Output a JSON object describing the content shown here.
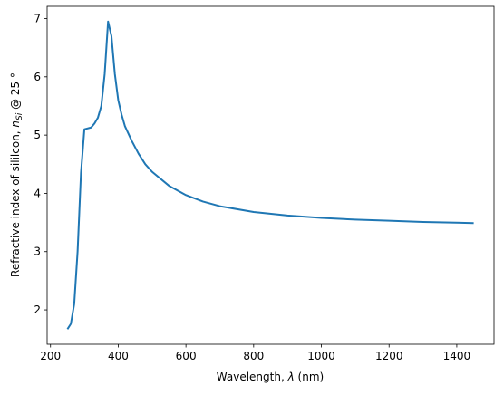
{
  "chart_data": {
    "type": "line",
    "xlabel": [
      "Wavelength, ",
      "λ",
      " (nm)"
    ],
    "ylabel": [
      "Refractive index of sililcon, ",
      "n",
      "Si",
      " @ 25 °"
    ],
    "x": [
      250,
      260,
      270,
      280,
      290,
      300,
      320,
      330,
      340,
      350,
      360,
      370,
      380,
      390,
      400,
      410,
      420,
      440,
      460,
      480,
      500,
      550,
      600,
      650,
      700,
      800,
      900,
      1000,
      1100,
      1200,
      1300,
      1450
    ],
    "series": [
      {
        "color": "#1f77b4",
        "values": [
          1.67,
          1.76,
          2.1,
          3.0,
          4.35,
          5.1,
          5.13,
          5.2,
          5.3,
          5.5,
          6.05,
          6.95,
          6.7,
          6.05,
          5.6,
          5.35,
          5.15,
          4.9,
          4.68,
          4.5,
          4.37,
          4.13,
          3.97,
          3.86,
          3.78,
          3.68,
          3.62,
          3.58,
          3.55,
          3.53,
          3.51,
          3.49
        ]
      }
    ],
    "xlim": [
      190,
      1510
    ],
    "ylim": [
      1.41,
      7.21
    ],
    "xticks": [
      200,
      400,
      600,
      800,
      1000,
      1200,
      1400
    ],
    "yticks": [
      2,
      3,
      4,
      5,
      6,
      7
    ]
  }
}
